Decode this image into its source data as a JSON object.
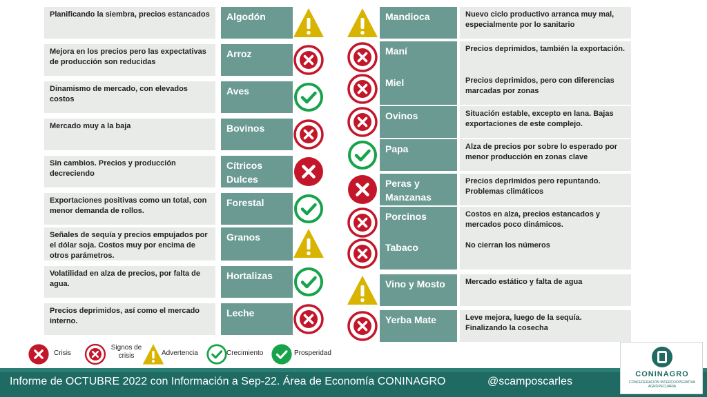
{
  "colors": {
    "crisis": "#c4162a",
    "growth": "#16a34a",
    "warning": "#d8b400",
    "name_cell": "#6a9a92",
    "desc_cell": "#e9ebe9",
    "footer": "#1f6b63"
  },
  "left_rows": [
    {
      "desc": "Planificando la siembra, precios estancados",
      "name": "Algodón",
      "status": "warning"
    },
    {
      "desc": "Mejora en los precios pero las expectativas de producción son reducidas",
      "name": "Arroz",
      "status": "crisis"
    },
    {
      "desc": "Dinamismo de mercado, con elevados costos",
      "name": "Aves",
      "status": "growth"
    },
    {
      "desc": "Mercado muy a la baja",
      "name": "Bovinos",
      "status": "crisis"
    },
    {
      "desc": "Sin cambios. Precios y producción decreciendo",
      "name": "Cítricos Dulces",
      "status": "crisis-solid"
    },
    {
      "desc": "Exportaciones positivas como un total, con menor demanda de rollos.",
      "name": "Forestal",
      "status": "growth"
    },
    {
      "desc": "Señales de sequía y precios empujados por el dólar soja.  Costos muy por encima de otros parámetros.",
      "name": "Granos",
      "status": "warning"
    },
    {
      "desc": "Volatilidad en alza de precios, por falta de agua.",
      "name": "Hortalizas",
      "status": "growth"
    },
    {
      "desc": "Precios deprimidos, así como el mercado interno.",
      "name": "Leche",
      "status": "crisis"
    }
  ],
  "right_rows": [
    {
      "desc": "Nuevo ciclo productivo arranca muy mal, especialmente por lo sanitario",
      "name": "Mandioca",
      "status": "warning"
    },
    {
      "desc": "Precios deprimidos, también la exportación.",
      "name": "Maní",
      "status": "crisis"
    },
    {
      "desc": "Precios deprimidos, pero con diferencias marcadas por zonas",
      "name": "Miel",
      "status": "crisis"
    },
    {
      "desc": "Situación estable, excepto en lana. Bajas exportaciones de este complejo.",
      "name": "Ovinos",
      "status": "crisis"
    },
    {
      "desc": "Alza de precios por sobre lo esperado por menor producción en zonas clave",
      "name": "Papa",
      "status": "growth"
    },
    {
      "desc": "Precios deprimidos pero repuntando. Problemas climáticos",
      "name": "Peras y Manzanas",
      "status": "crisis-solid"
    },
    {
      "desc": "Costos en alza, precios estancados y mercados poco dinámicos.",
      "name": "Porcinos",
      "status": "crisis"
    },
    {
      "desc": "No cierran los números",
      "name": "Tabaco",
      "status": "crisis"
    },
    {
      "desc": "Mercado estático y falta de agua",
      "name": "Vino y Mosto",
      "status": "warning"
    },
    {
      "desc": "Leve mejora, luego de la sequía. Finalizando la cosecha",
      "name": "Yerba Mate",
      "status": "crisis"
    }
  ],
  "legend": [
    {
      "label": "Crisis",
      "icon": "crisis-solid"
    },
    {
      "label": "Signos de crisis",
      "icon": "crisis"
    },
    {
      "label": "Advertencia",
      "icon": "warning"
    },
    {
      "label": "Crecimiento",
      "icon": "growth"
    },
    {
      "label": "Prosperidad",
      "icon": "growth-solid"
    }
  ],
  "footer": {
    "text": "Informe de OCTUBRE 2022 con Información a Sep-22. Área de Economía CONINAGRO",
    "handle": "@scamposcarles"
  },
  "logo": {
    "name": "CONINAGRO",
    "subtitle": "CONFEDERACIÓN INTERCOOPERATIVA AGROPECUARIA"
  }
}
